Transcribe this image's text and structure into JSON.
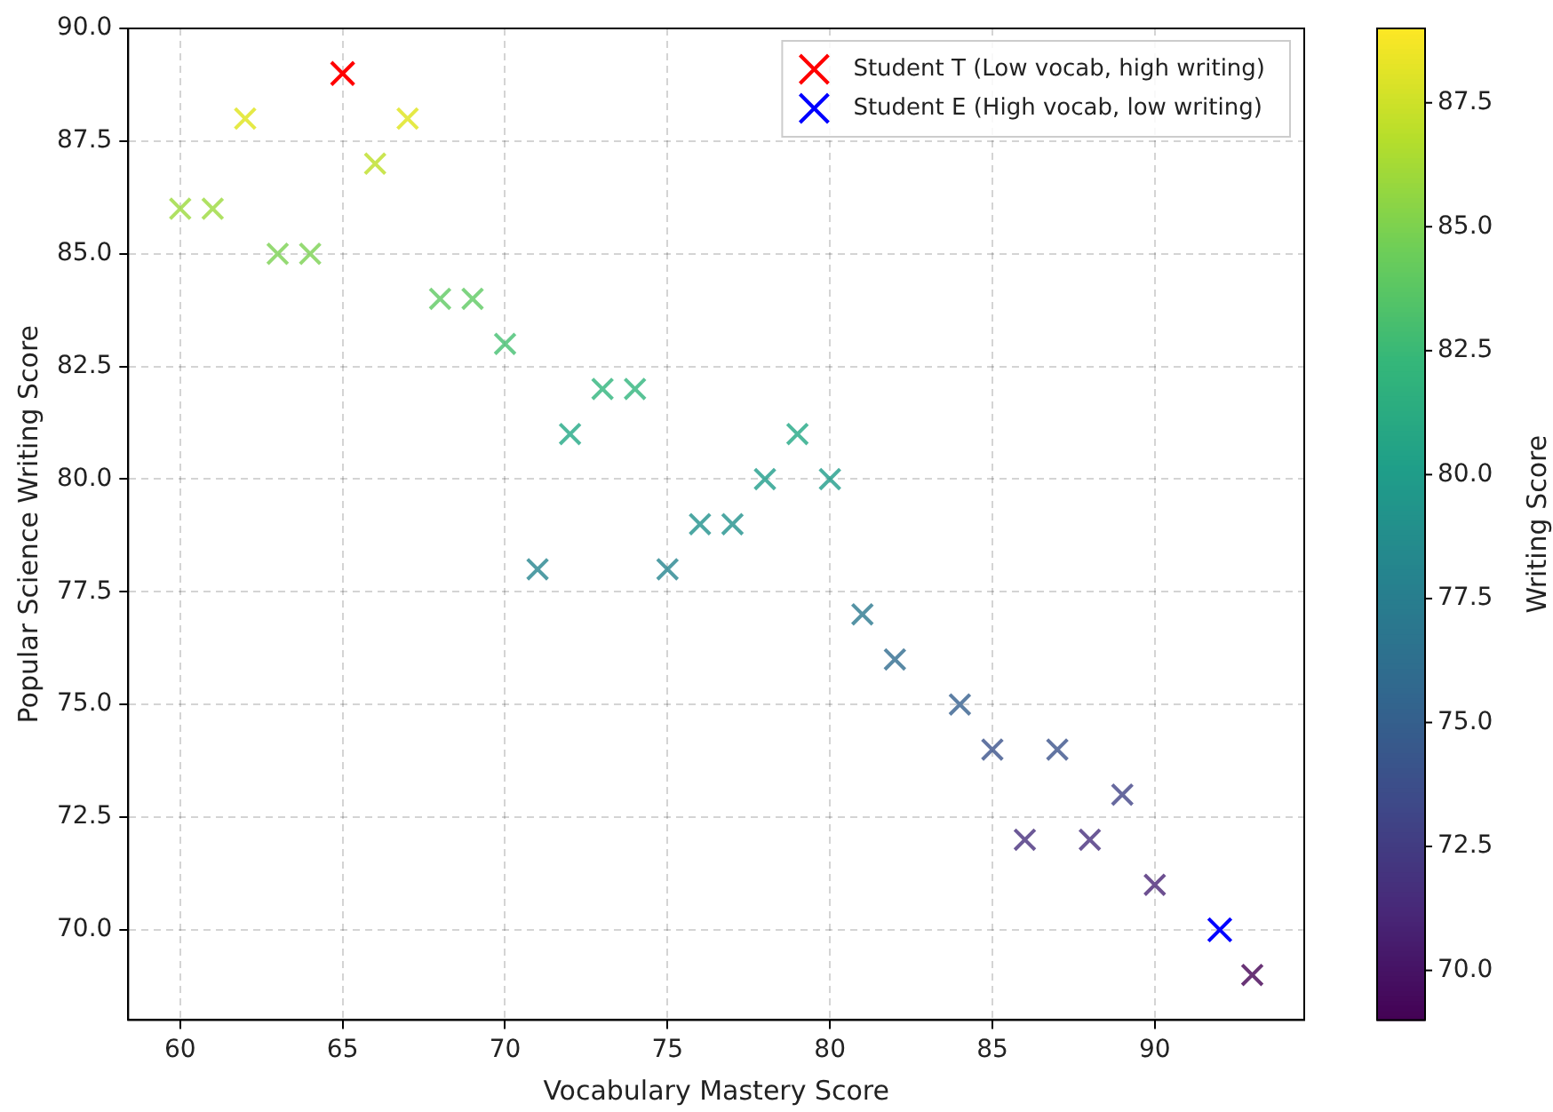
{
  "chart_data": {
    "type": "scatter",
    "xlabel": "Vocabulary Mastery Score",
    "ylabel": "Popular Science Writing Score",
    "clabel": "Writing Score",
    "series": [
      {
        "x": [
          60,
          61,
          62,
          63,
          64,
          66,
          67,
          68,
          69,
          70,
          71,
          72,
          73,
          74,
          75,
          76,
          77,
          78,
          79,
          80,
          81,
          82,
          84,
          85,
          86,
          87,
          88,
          89,
          90,
          93
        ],
        "values": [
          86,
          86,
          88,
          85,
          85,
          87,
          88,
          84,
          84,
          83,
          78,
          81,
          82,
          82,
          78,
          79,
          79,
          80,
          81,
          80,
          77,
          76,
          75,
          74,
          72,
          74,
          72,
          73,
          71,
          69
        ],
        "colors": [
          "#9bd93c",
          "#9bd93c",
          "#dfe318",
          "#7ad151",
          "#7ad151",
          "#bddf26",
          "#dfe318",
          "#5ec962",
          "#5ec962",
          "#44bf70",
          "#25848e",
          "#22a884",
          "#2fb47c",
          "#2fb47c",
          "#25848e",
          "#21918c",
          "#21918c",
          "#1e9c89",
          "#22a884",
          "#1e9c89",
          "#2a788e",
          "#2f6c8e",
          "#355f8d",
          "#3b528b",
          "#472f7d",
          "#3b528b",
          "#472f7d",
          "#414487",
          "#482475",
          "#440154"
        ]
      },
      {
        "name": "Student T (Low vocab, high writing)",
        "color": "#ff0000",
        "x": [
          65
        ],
        "values": [
          89
        ]
      },
      {
        "name": "Student E (High vocab, low writing)",
        "color": "#0000ff",
        "x": [
          92
        ],
        "values": [
          70
        ]
      }
    ],
    "xlim": [
      58.4,
      94.6
    ],
    "xticks": [
      60,
      65,
      70,
      75,
      80,
      85,
      90
    ],
    "ylim": [
      68,
      90
    ],
    "yticks": [
      {
        "value": 70,
        "label": "70.0"
      },
      {
        "value": 72.5,
        "label": "72.5"
      },
      {
        "value": 75,
        "label": "75.0"
      },
      {
        "value": 77.5,
        "label": "77.5"
      },
      {
        "value": 80,
        "label": "80.0"
      },
      {
        "value": 82.5,
        "label": "82.5"
      },
      {
        "value": 85,
        "label": "85.0"
      },
      {
        "value": 87.5,
        "label": "87.5"
      },
      {
        "value": 90,
        "label": "90.0"
      }
    ],
    "clim": [
      69,
      89
    ],
    "cticks": [
      {
        "value": 70,
        "label": "70.0"
      },
      {
        "value": 72.5,
        "label": "72.5"
      },
      {
        "value": 75,
        "label": "75.0"
      },
      {
        "value": 77.5,
        "label": "77.5"
      },
      {
        "value": 80,
        "label": "80.0"
      },
      {
        "value": 82.5,
        "label": "82.5"
      },
      {
        "value": 85,
        "label": "85.0"
      },
      {
        "value": 87.5,
        "label": "87.5"
      }
    ],
    "grid": true,
    "legend": "top right",
    "marker": "cross"
  }
}
